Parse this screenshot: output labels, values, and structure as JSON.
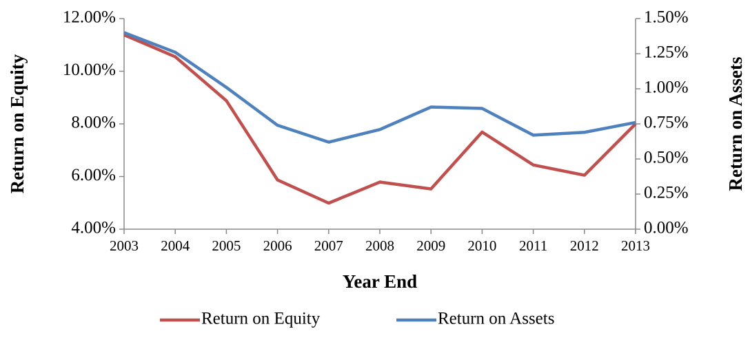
{
  "chart_data": {
    "type": "line",
    "categories": [
      "2003",
      "2004",
      "2005",
      "2006",
      "2007",
      "2008",
      "2009",
      "2010",
      "2011",
      "2012",
      "2013"
    ],
    "series": [
      {
        "name": "Return on Equity",
        "color": "#c0504d",
        "values": [
          11.38,
          10.55,
          8.88,
          5.87,
          4.99,
          5.79,
          5.53,
          7.69,
          6.44,
          6.05,
          8.0
        ]
      },
      {
        "name": "Return on Assets",
        "color": "#4f81bd",
        "axis": "y2",
        "values": [
          1.4,
          1.26,
          1.01,
          0.74,
          0.62,
          0.71,
          0.87,
          0.86,
          0.67,
          0.69,
          0.76
        ]
      }
    ],
    "xlabel": "Year End",
    "ylabel": "Return on Equity",
    "y2label": "Return on Assets",
    "ylim": [
      4,
      12
    ],
    "yticks": [
      {
        "value": 4,
        "label": "4.00%"
      },
      {
        "value": 6,
        "label": "6.00%"
      },
      {
        "value": 8,
        "label": "8.00%"
      },
      {
        "value": 10,
        "label": "10.00%"
      },
      {
        "value": 12,
        "label": "12.00%"
      }
    ],
    "y2lim": [
      0,
      1.5
    ],
    "y2ticks": [
      {
        "value": 0,
        "label": "0.00%"
      },
      {
        "value": 0.25,
        "label": "0.25%"
      },
      {
        "value": 0.5,
        "label": "0.50%"
      },
      {
        "value": 0.75,
        "label": "0.75%"
      },
      {
        "value": 1,
        "label": "1.00%"
      },
      {
        "value": 1.25,
        "label": "1.25%"
      },
      {
        "value": 1.5,
        "label": "1.50%"
      }
    ],
    "legend": "bottom",
    "grid": false
  }
}
